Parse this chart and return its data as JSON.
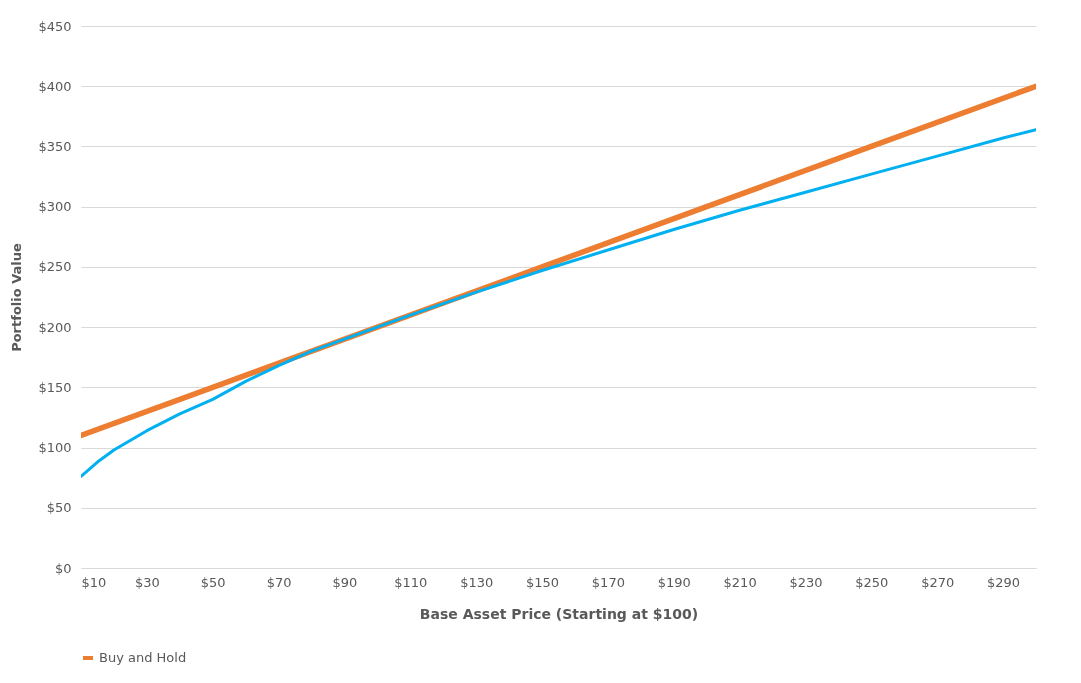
{
  "chart_data": {
    "type": "line",
    "xlabel": "Base Asset Price (Starting at $100)",
    "ylabel": "Portfolio Value",
    "xlim": [
      10,
      300
    ],
    "xticks": [
      {
        "value": 10,
        "label": "$10"
      },
      {
        "value": 30,
        "label": "$30"
      },
      {
        "value": 50,
        "label": "$50"
      },
      {
        "value": 70,
        "label": "$70"
      },
      {
        "value": 90,
        "label": "$90"
      },
      {
        "value": 110,
        "label": "$110"
      },
      {
        "value": 130,
        "label": "$130"
      },
      {
        "value": 150,
        "label": "$150"
      },
      {
        "value": 170,
        "label": "$170"
      },
      {
        "value": 190,
        "label": "$190"
      },
      {
        "value": 210,
        "label": "$210"
      },
      {
        "value": 230,
        "label": "$230"
      },
      {
        "value": 250,
        "label": "$250"
      },
      {
        "value": 270,
        "label": "$270"
      },
      {
        "value": 290,
        "label": "$290"
      }
    ],
    "ylim": [
      0,
      450
    ],
    "yticks": [
      {
        "value": 0,
        "label": "$0"
      },
      {
        "value": 50,
        "label": "$50"
      },
      {
        "value": 100,
        "label": "$100"
      },
      {
        "value": 150,
        "label": "$150"
      },
      {
        "value": 200,
        "label": "$200"
      },
      {
        "value": 250,
        "label": "$250"
      },
      {
        "value": 300,
        "label": "$300"
      },
      {
        "value": 350,
        "label": "$350"
      },
      {
        "value": 400,
        "label": "$400"
      },
      {
        "value": 450,
        "label": "$450"
      }
    ],
    "grid": "y",
    "legend": "bottom",
    "line_style": "solid",
    "series": [
      {
        "name": "Buy and Hold",
        "color": "#ed7d31",
        "x": [
          10,
          50,
          100,
          150,
          200,
          250,
          300
        ],
        "values": [
          110,
          150,
          200,
          250,
          300,
          350,
          400
        ]
      },
      {
        "color": "#00b0f0",
        "x": [
          10,
          15,
          20,
          30,
          40,
          50,
          60,
          70,
          80,
          90,
          110,
          130,
          150,
          170,
          190,
          210,
          230,
          250,
          270,
          290,
          300
        ],
        "values": [
          76,
          88,
          98,
          114,
          128,
          140,
          155,
          168,
          180,
          190,
          210,
          229,
          247,
          264,
          281,
          297,
          312,
          327,
          342,
          357,
          364
        ]
      }
    ]
  }
}
